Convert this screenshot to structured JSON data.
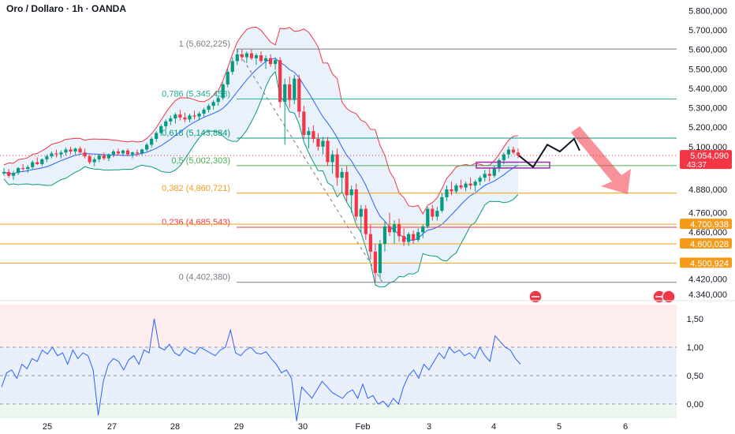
{
  "header": {
    "title": "Oro / Dollaro · 1h · OANDA"
  },
  "price_axis": {
    "labels": [
      "5.800,000",
      "5.700,000",
      "5.600,000",
      "5.500,000",
      "5.400,000",
      "5.300,000",
      "5.200,000",
      "5.100,000",
      "4.880,000",
      "4.760,000",
      "4.660,000",
      "4.420,000",
      "4.340,000"
    ],
    "badges": [
      {
        "text": "5.054,090",
        "sub": "43:37",
        "color": "#f23645"
      },
      {
        "text": "4.700,938",
        "color": "#f59b1c"
      },
      {
        "text": "4.600,028",
        "color": "#f59b1c"
      },
      {
        "text": "4.500,924",
        "color": "#f59b1c"
      }
    ]
  },
  "indicator_axis": {
    "labels": [
      "1,50",
      "1,00",
      "0,50",
      "0,00"
    ]
  },
  "time_axis": {
    "labels": [
      "25",
      "27",
      "28",
      "29",
      "30",
      "Feb",
      "3",
      "4",
      "5",
      "6"
    ]
  },
  "chart_data": {
    "type": "candlestick",
    "symbol": "Oro / Dollaro",
    "interval": "1h",
    "source": "OANDA",
    "fibonacci": [
      {
        "label": "1 (5,602,225)",
        "level": 5602.225,
        "color": "#787b86"
      },
      {
        "label": "0,786 (5,345,458)",
        "level": 5345.458,
        "color": "#22ab94"
      },
      {
        "label": "0,618 (5,143,884)",
        "level": 5143.884,
        "color": "#089981"
      },
      {
        "label": "0,5 (5,002,303)",
        "level": 5002.303,
        "color": "#4caf50"
      },
      {
        "label": "0,382 (4,860,721)",
        "level": 4860.721,
        "color": "#f59b1c"
      },
      {
        "label": "0,236 (4,685,543)",
        "level": 4685.543,
        "color": "#f23645"
      },
      {
        "label": "0 (4,402,380)",
        "level": 4402.38,
        "color": "#787b86"
      }
    ],
    "horizontal_levels": [
      4700.938,
      4600.028,
      4500.924
    ],
    "last_price": 5054.09,
    "price_range": [
      4320,
      5830
    ],
    "candles_ohlc_hourly": [
      [
        4962,
        4990,
        4950,
        4970
      ],
      [
        4970,
        4985,
        4940,
        4950
      ],
      [
        4950,
        4975,
        4930,
        4965
      ],
      [
        4965,
        4995,
        4955,
        4990
      ],
      [
        4990,
        5010,
        4975,
        4985
      ],
      [
        4985,
        5005,
        4965,
        4995
      ],
      [
        4995,
        5030,
        4985,
        5020
      ],
      [
        5020,
        5045,
        5005,
        5010
      ],
      [
        5010,
        5040,
        5000,
        5035
      ],
      [
        5035,
        5060,
        5020,
        5050
      ],
      [
        5050,
        5075,
        5040,
        5065
      ],
      [
        5065,
        5085,
        5045,
        5060
      ],
      [
        5060,
        5080,
        5040,
        5070
      ],
      [
        5070,
        5095,
        5055,
        5085
      ],
      [
        5085,
        5100,
        5060,
        5075
      ],
      [
        5075,
        5095,
        5060,
        5090
      ],
      [
        5090,
        5100,
        5065,
        5070
      ],
      [
        5070,
        5090,
        5040,
        5050
      ],
      [
        5050,
        5060,
        5010,
        5020
      ],
      [
        5020,
        5045,
        5000,
        5035
      ],
      [
        5035,
        5060,
        5020,
        5055
      ],
      [
        5055,
        5070,
        5030,
        5040
      ],
      [
        5040,
        5065,
        5025,
        5060
      ],
      [
        5060,
        5085,
        5045,
        5075
      ],
      [
        5075,
        5090,
        5055,
        5065
      ],
      [
        5065,
        5085,
        5050,
        5080
      ],
      [
        5080,
        5090,
        5050,
        5060
      ],
      [
        5060,
        5075,
        5040,
        5070
      ],
      [
        5070,
        5085,
        5050,
        5065
      ],
      [
        5065,
        5090,
        5055,
        5085
      ],
      [
        5085,
        5120,
        5075,
        5110
      ],
      [
        5110,
        5150,
        5095,
        5140
      ],
      [
        5140,
        5180,
        5125,
        5170
      ],
      [
        5170,
        5215,
        5155,
        5205
      ],
      [
        5205,
        5240,
        5185,
        5230
      ],
      [
        5230,
        5260,
        5210,
        5245
      ],
      [
        5245,
        5275,
        5220,
        5265
      ],
      [
        5265,
        5290,
        5235,
        5250
      ],
      [
        5250,
        5275,
        5225,
        5240
      ],
      [
        5240,
        5270,
        5225,
        5260
      ],
      [
        5260,
        5285,
        5240,
        5255
      ],
      [
        5255,
        5280,
        5235,
        5270
      ],
      [
        5270,
        5300,
        5255,
        5290
      ],
      [
        5290,
        5320,
        5275,
        5310
      ],
      [
        5310,
        5340,
        5290,
        5330
      ],
      [
        5330,
        5360,
        5310,
        5350
      ],
      [
        5350,
        5430,
        5340,
        5420
      ],
      [
        5420,
        5500,
        5405,
        5485
      ],
      [
        5485,
        5560,
        5470,
        5540
      ],
      [
        5540,
        5602,
        5520,
        5575
      ],
      [
        5575,
        5600,
        5540,
        5560
      ],
      [
        5560,
        5590,
        5530,
        5580
      ],
      [
        5580,
        5600,
        5545,
        5555
      ],
      [
        5555,
        5580,
        5520,
        5570
      ],
      [
        5570,
        5590,
        5530,
        5540
      ],
      [
        5540,
        5570,
        5500,
        5555
      ],
      [
        5555,
        5575,
        5510,
        5525
      ],
      [
        5525,
        5560,
        5495,
        5545
      ],
      [
        5545,
        5560,
        5300,
        5330
      ],
      [
        5330,
        5450,
        5110,
        5420
      ],
      [
        5420,
        5460,
        5300,
        5340
      ],
      [
        5340,
        5470,
        5320,
        5450
      ],
      [
        5450,
        5470,
        5250,
        5280
      ],
      [
        5280,
        5310,
        5140,
        5160
      ],
      [
        5160,
        5200,
        5090,
        5180
      ],
      [
        5180,
        5210,
        5120,
        5140
      ],
      [
        5140,
        5170,
        5080,
        5100
      ],
      [
        5100,
        5150,
        5060,
        5130
      ],
      [
        5130,
        5150,
        5000,
        5020
      ],
      [
        5020,
        5080,
        4960,
        5060
      ],
      [
        5060,
        5090,
        4900,
        4940
      ],
      [
        4940,
        4990,
        4860,
        4970
      ],
      [
        4970,
        5000,
        4820,
        4850
      ],
      [
        4850,
        4900,
        4760,
        4880
      ],
      [
        4880,
        4910,
        4720,
        4740
      ],
      [
        4740,
        4800,
        4660,
        4780
      ],
      [
        4780,
        4800,
        4620,
        4650
      ],
      [
        4650,
        4700,
        4520,
        4560
      ],
      [
        4560,
        4600,
        4402,
        4450
      ],
      [
        4450,
        4620,
        4420,
        4600
      ],
      [
        4600,
        4720,
        4560,
        4690
      ],
      [
        4690,
        4760,
        4640,
        4660
      ],
      [
        4660,
        4720,
        4600,
        4700
      ],
      [
        4700,
        4730,
        4610,
        4640
      ],
      [
        4640,
        4680,
        4590,
        4610
      ],
      [
        4610,
        4660,
        4590,
        4650
      ],
      [
        4650,
        4670,
        4600,
        4620
      ],
      [
        4620,
        4680,
        4610,
        4660
      ],
      [
        4660,
        4700,
        4630,
        4690
      ],
      [
        4690,
        4790,
        4680,
        4780
      ],
      [
        4780,
        4800,
        4720,
        4740
      ],
      [
        4740,
        4790,
        4720,
        4770
      ],
      [
        4770,
        4860,
        4760,
        4840
      ],
      [
        4840,
        4900,
        4820,
        4880
      ],
      [
        4880,
        4920,
        4850,
        4870
      ],
      [
        4870,
        4910,
        4860,
        4900
      ],
      [
        4900,
        4930,
        4880,
        4890
      ],
      [
        4890,
        4920,
        4870,
        4910
      ],
      [
        4910,
        4940,
        4880,
        4900
      ],
      [
        4900,
        4930,
        4870,
        4920
      ],
      [
        4920,
        4950,
        4900,
        4940
      ],
      [
        4940,
        4980,
        4920,
        4960
      ],
      [
        4960,
        4990,
        4920,
        4950
      ],
      [
        4950,
        5000,
        4940,
        4990
      ],
      [
        4990,
        5040,
        4970,
        5030
      ],
      [
        5030,
        5070,
        5010,
        5060
      ],
      [
        5060,
        5100,
        5040,
        5085
      ],
      [
        5085,
        5100,
        5060,
        5070
      ],
      [
        5070,
        5090,
        5040,
        5054
      ]
    ],
    "indicator_series": [
      0.3,
      0.55,
      0.6,
      0.45,
      0.7,
      0.62,
      0.8,
      0.75,
      0.95,
      0.88,
      1.0,
      0.85,
      0.9,
      0.7,
      0.95,
      0.8,
      0.9,
      0.85,
      0.6,
      -0.2,
      0.4,
      0.7,
      0.8,
      0.75,
      0.6,
      0.78,
      0.85,
      0.7,
      0.95,
      0.9,
      1.5,
      1.0,
      0.95,
      1.05,
      0.9,
      0.85,
      0.98,
      0.92,
      0.88,
      1.0,
      0.95,
      0.9,
      0.85,
      0.95,
      1.0,
      1.3,
      0.9,
      0.85,
      0.95,
      1.0,
      0.9,
      0.88,
      0.92,
      0.8,
      0.7,
      0.55,
      0.6,
      0.45,
      -0.3,
      0.3,
      0.2,
      0.1,
      0.25,
      0.4,
      0.3,
      0.2,
      0.15,
      0.1,
      0.2,
      0.25,
      0.1,
      0.35,
      0.1,
      0.15,
      0.0,
      0.05,
      -0.05,
      0.1,
      0.0,
      0.3,
      0.5,
      0.6,
      0.45,
      0.7,
      0.6,
      0.75,
      0.9,
      0.8,
      1.0,
      0.9,
      0.95,
      0.85,
      0.9,
      0.8,
      1.0,
      0.85,
      0.75,
      1.2,
      1.1,
      1.0,
      0.95,
      0.8,
      0.7
    ],
    "indicator_range": [
      -0.25,
      1.75
    ],
    "projection_path_prices": [
      5054,
      4995,
      5110,
      5075,
      5140,
      5080
    ],
    "bearish_arrow": true,
    "time_labels": [
      "25",
      "27",
      "28",
      "29",
      "30",
      "Feb",
      "3",
      "4",
      "5",
      "6"
    ]
  }
}
